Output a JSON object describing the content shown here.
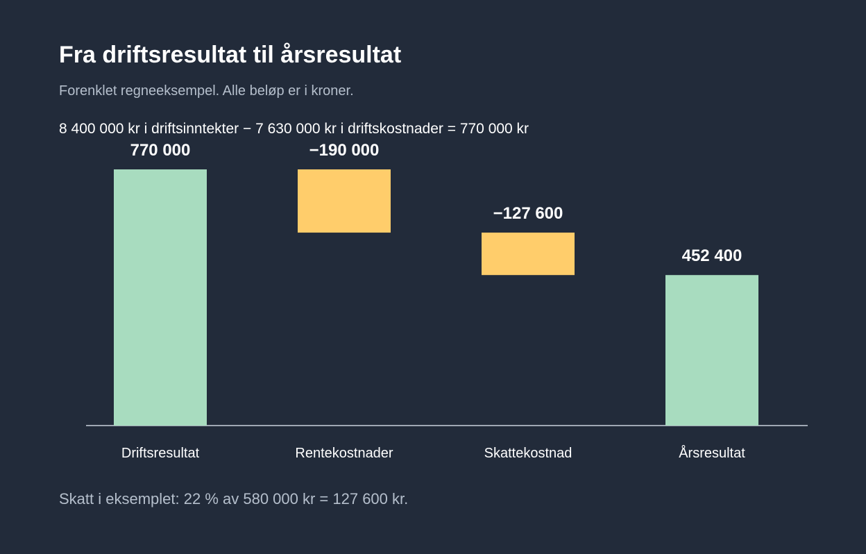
{
  "title": "Fra driftsresultat til årsresultat",
  "subtitle": "Forenklet regneeksempel. Alle beløp er i kroner.",
  "formula": "8 400 000 kr i driftsinntekter − 7 630 000 kr i driftskostnader = 770 000 kr",
  "footnote": "Skatt i eksemplet: 22 % av 580 000 kr = 127 600 kr.",
  "colors": {
    "background": "#222b3a",
    "total": "#a8dcbf",
    "decrease": "#ffcd6b",
    "axis": "#c9d1dc",
    "text": "#ffffff",
    "muted": "#b5bfcc"
  },
  "chart_data": {
    "type": "bar",
    "subtype": "waterfall",
    "categories": [
      "Driftsresultat",
      "Rentekostnader",
      "Skattekostnad",
      "Årsresultat"
    ],
    "values": [
      770000,
      -190000,
      -127600,
      452400
    ],
    "value_labels": [
      "770 000",
      "−190 000",
      "−127 600",
      "452 400"
    ],
    "kinds": [
      "total",
      "decrease",
      "decrease",
      "total"
    ],
    "ylim": [
      0,
      770000
    ],
    "grid": false,
    "legend": "none"
  }
}
